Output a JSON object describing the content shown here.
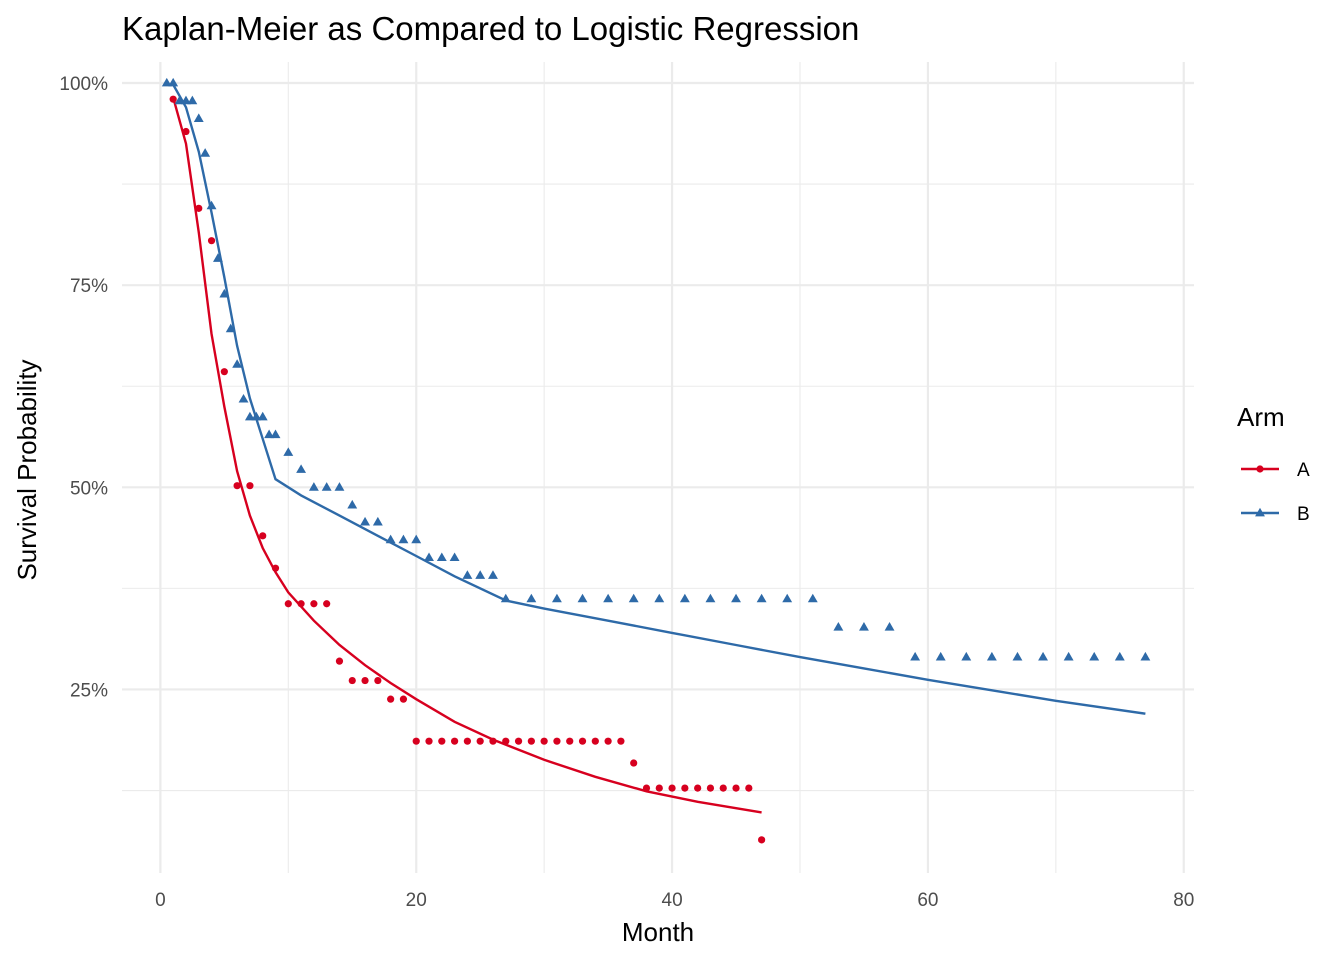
{
  "chart_data": {
    "type": "scatter",
    "title": "Kaplan-Meier as Compared to Logistic Regression",
    "xlabel": "Month",
    "ylabel": "Survival Probability",
    "xlim": [
      -3,
      80.8
    ],
    "ylim": [
      0.023,
      1.026
    ],
    "x_ticks": [
      0,
      20,
      40,
      60,
      80
    ],
    "x_tick_labels": [
      "0",
      "20",
      "40",
      "60",
      "80"
    ],
    "x_minor_ticks": [
      10,
      30,
      50,
      70
    ],
    "y_ticks": [
      0.25,
      0.5,
      0.75,
      1.0
    ],
    "y_tick_labels": [
      "25%",
      "50%",
      "75%",
      "100%"
    ],
    "y_minor_ticks": [
      0.125,
      0.375,
      0.625,
      0.875
    ],
    "grid": true,
    "legend": {
      "title": "Arm",
      "position": "right",
      "entries": [
        "A",
        "B"
      ]
    },
    "colors": {
      "A": "#d7001f",
      "B": "#2e6aa8"
    },
    "series": [
      {
        "name": "A",
        "marker": "circle",
        "points": [
          [
            1,
            0.98
          ],
          [
            2,
            0.94
          ],
          [
            3,
            0.845
          ],
          [
            4,
            0.805
          ],
          [
            5,
            0.643
          ],
          [
            6,
            0.502
          ],
          [
            7,
            0.502
          ],
          [
            8,
            0.44
          ],
          [
            9,
            0.4
          ],
          [
            10,
            0.356
          ],
          [
            11,
            0.356
          ],
          [
            12,
            0.356
          ],
          [
            13,
            0.356
          ],
          [
            14,
            0.285
          ],
          [
            15,
            0.261
          ],
          [
            16,
            0.261
          ],
          [
            17,
            0.261
          ],
          [
            18,
            0.238
          ],
          [
            19,
            0.238
          ],
          [
            20,
            0.186
          ],
          [
            21,
            0.186
          ],
          [
            22,
            0.186
          ],
          [
            23,
            0.186
          ],
          [
            24,
            0.186
          ],
          [
            25,
            0.186
          ],
          [
            26,
            0.186
          ],
          [
            27,
            0.186
          ],
          [
            28,
            0.186
          ],
          [
            29,
            0.186
          ],
          [
            30,
            0.186
          ],
          [
            31,
            0.186
          ],
          [
            32,
            0.186
          ],
          [
            33,
            0.186
          ],
          [
            34,
            0.186
          ],
          [
            35,
            0.186
          ],
          [
            36,
            0.186
          ],
          [
            37,
            0.159
          ],
          [
            38,
            0.128
          ],
          [
            39,
            0.128
          ],
          [
            40,
            0.128
          ],
          [
            41,
            0.128
          ],
          [
            42,
            0.128
          ],
          [
            43,
            0.128
          ],
          [
            44,
            0.128
          ],
          [
            45,
            0.128
          ],
          [
            46,
            0.128
          ],
          [
            47,
            0.064
          ]
        ],
        "fit": [
          [
            1,
            0.982
          ],
          [
            2,
            0.925
          ],
          [
            3,
            0.815
          ],
          [
            4,
            0.69
          ],
          [
            5,
            0.6
          ],
          [
            6,
            0.52
          ],
          [
            7,
            0.465
          ],
          [
            8,
            0.425
          ],
          [
            9,
            0.395
          ],
          [
            10,
            0.37
          ],
          [
            12,
            0.335
          ],
          [
            14,
            0.305
          ],
          [
            16,
            0.28
          ],
          [
            18,
            0.258
          ],
          [
            20,
            0.238
          ],
          [
            23,
            0.21
          ],
          [
            26,
            0.188
          ],
          [
            30,
            0.163
          ],
          [
            34,
            0.142
          ],
          [
            38,
            0.124
          ],
          [
            42,
            0.111
          ],
          [
            47,
            0.098
          ]
        ]
      },
      {
        "name": "B",
        "marker": "triangle",
        "points": [
          [
            0.5,
            1.0
          ],
          [
            1,
            1.0
          ],
          [
            1.5,
            0.978
          ],
          [
            2,
            0.978
          ],
          [
            2.5,
            0.978
          ],
          [
            3,
            0.956
          ],
          [
            3.5,
            0.913
          ],
          [
            4,
            0.848
          ],
          [
            4.5,
            0.783
          ],
          [
            5,
            0.739
          ],
          [
            5.5,
            0.696
          ],
          [
            6,
            0.652
          ],
          [
            6.5,
            0.609
          ],
          [
            7,
            0.587
          ],
          [
            7.5,
            0.587
          ],
          [
            8,
            0.587
          ],
          [
            8.5,
            0.565
          ],
          [
            9,
            0.565
          ],
          [
            10,
            0.543
          ],
          [
            11,
            0.522
          ],
          [
            12,
            0.5
          ],
          [
            13,
            0.5
          ],
          [
            14,
            0.5
          ],
          [
            15,
            0.478
          ],
          [
            16,
            0.457
          ],
          [
            17,
            0.457
          ],
          [
            18,
            0.435
          ],
          [
            19,
            0.435
          ],
          [
            20,
            0.435
          ],
          [
            21,
            0.413
          ],
          [
            22,
            0.413
          ],
          [
            23,
            0.413
          ],
          [
            24,
            0.391
          ],
          [
            25,
            0.391
          ],
          [
            26,
            0.391
          ],
          [
            27,
            0.362
          ],
          [
            29,
            0.362
          ],
          [
            31,
            0.362
          ],
          [
            33,
            0.362
          ],
          [
            35,
            0.362
          ],
          [
            37,
            0.362
          ],
          [
            39,
            0.362
          ],
          [
            41,
            0.362
          ],
          [
            43,
            0.362
          ],
          [
            45,
            0.362
          ],
          [
            47,
            0.362
          ],
          [
            49,
            0.362
          ],
          [
            51,
            0.362
          ],
          [
            53,
            0.327
          ],
          [
            55,
            0.327
          ],
          [
            57,
            0.327
          ],
          [
            59,
            0.29
          ],
          [
            61,
            0.29
          ],
          [
            63,
            0.29
          ],
          [
            65,
            0.29
          ],
          [
            67,
            0.29
          ],
          [
            69,
            0.29
          ],
          [
            71,
            0.29
          ],
          [
            73,
            0.29
          ],
          [
            75,
            0.29
          ],
          [
            77,
            0.29
          ]
        ],
        "fit": [
          [
            1,
            0.998
          ],
          [
            2,
            0.97
          ],
          [
            3,
            0.915
          ],
          [
            4,
            0.84
          ],
          [
            5,
            0.76
          ],
          [
            6,
            0.675
          ],
          [
            7,
            0.61
          ],
          [
            8,
            0.56
          ],
          [
            9,
            0.51
          ],
          [
            11,
            0.49
          ],
          [
            14,
            0.465
          ],
          [
            17,
            0.44
          ],
          [
            20,
            0.415
          ],
          [
            23,
            0.39
          ],
          [
            27,
            0.36
          ],
          [
            30,
            0.35
          ],
          [
            35,
            0.335
          ],
          [
            40,
            0.32
          ],
          [
            45,
            0.305
          ],
          [
            50,
            0.29
          ],
          [
            55,
            0.276
          ],
          [
            60,
            0.262
          ],
          [
            65,
            0.249
          ],
          [
            70,
            0.236
          ],
          [
            77,
            0.22
          ]
        ]
      }
    ]
  }
}
